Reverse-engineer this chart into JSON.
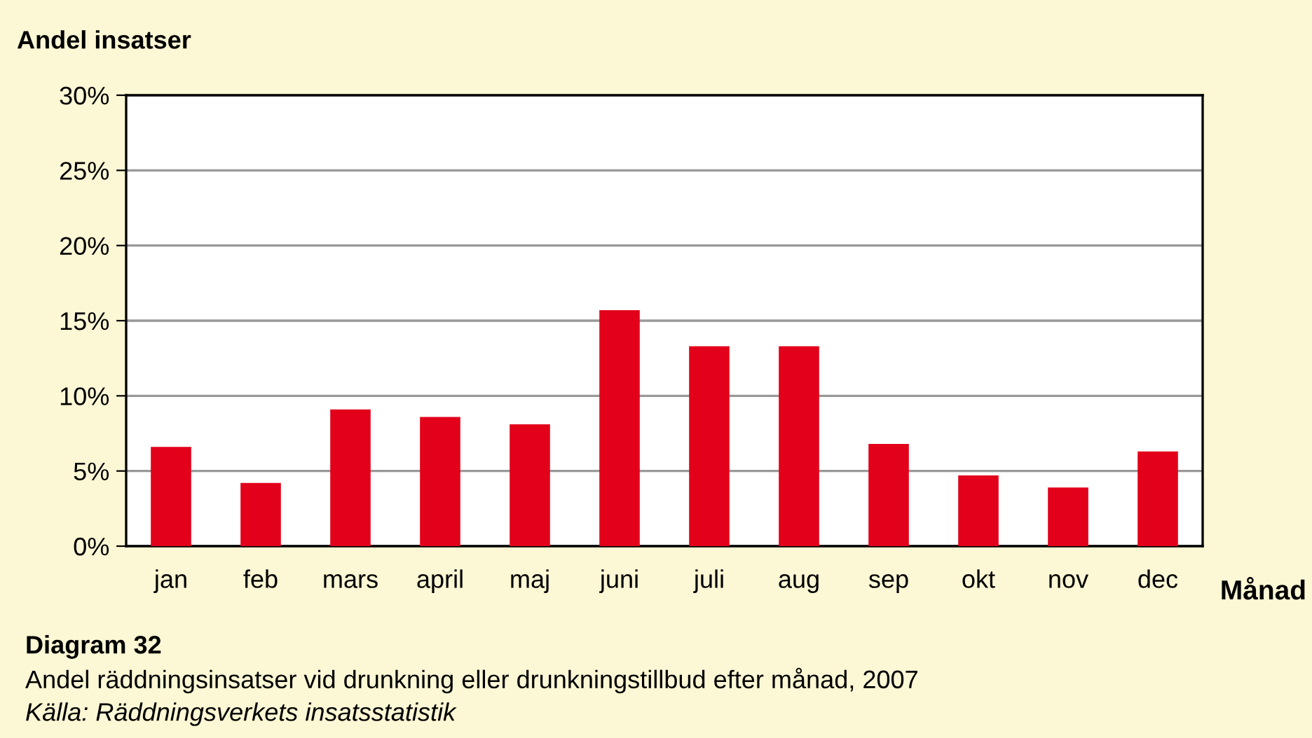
{
  "chart_data": {
    "type": "bar",
    "title": "Diagram 32",
    "subtitle": "Andel räddningsinsatser vid drunkning eller drunkningstillbud efter månad, 2007",
    "annotations": [
      "Källa: Räddningsverkets insatsstatistik"
    ],
    "ylabel": "Andel insatser",
    "xlabel": "Månad",
    "categories": [
      "jan",
      "feb",
      "mars",
      "april",
      "maj",
      "juni",
      "juli",
      "aug",
      "sep",
      "okt",
      "nov",
      "dec"
    ],
    "values": [
      6.6,
      4.2,
      9.1,
      8.6,
      8.1,
      15.7,
      13.3,
      13.3,
      6.8,
      4.7,
      3.9,
      6.3
    ],
    "color": "#e2001a",
    "ylim": [
      0,
      30
    ],
    "yticks": [
      {
        "value": 0,
        "label": "0%"
      },
      {
        "value": 5,
        "label": "5%"
      },
      {
        "value": 10,
        "label": "10%"
      },
      {
        "value": 15,
        "label": "15%"
      },
      {
        "value": 20,
        "label": "20%"
      },
      {
        "value": 25,
        "label": "25%"
      },
      {
        "value": 30,
        "label": "30%"
      }
    ],
    "grid": "y"
  }
}
